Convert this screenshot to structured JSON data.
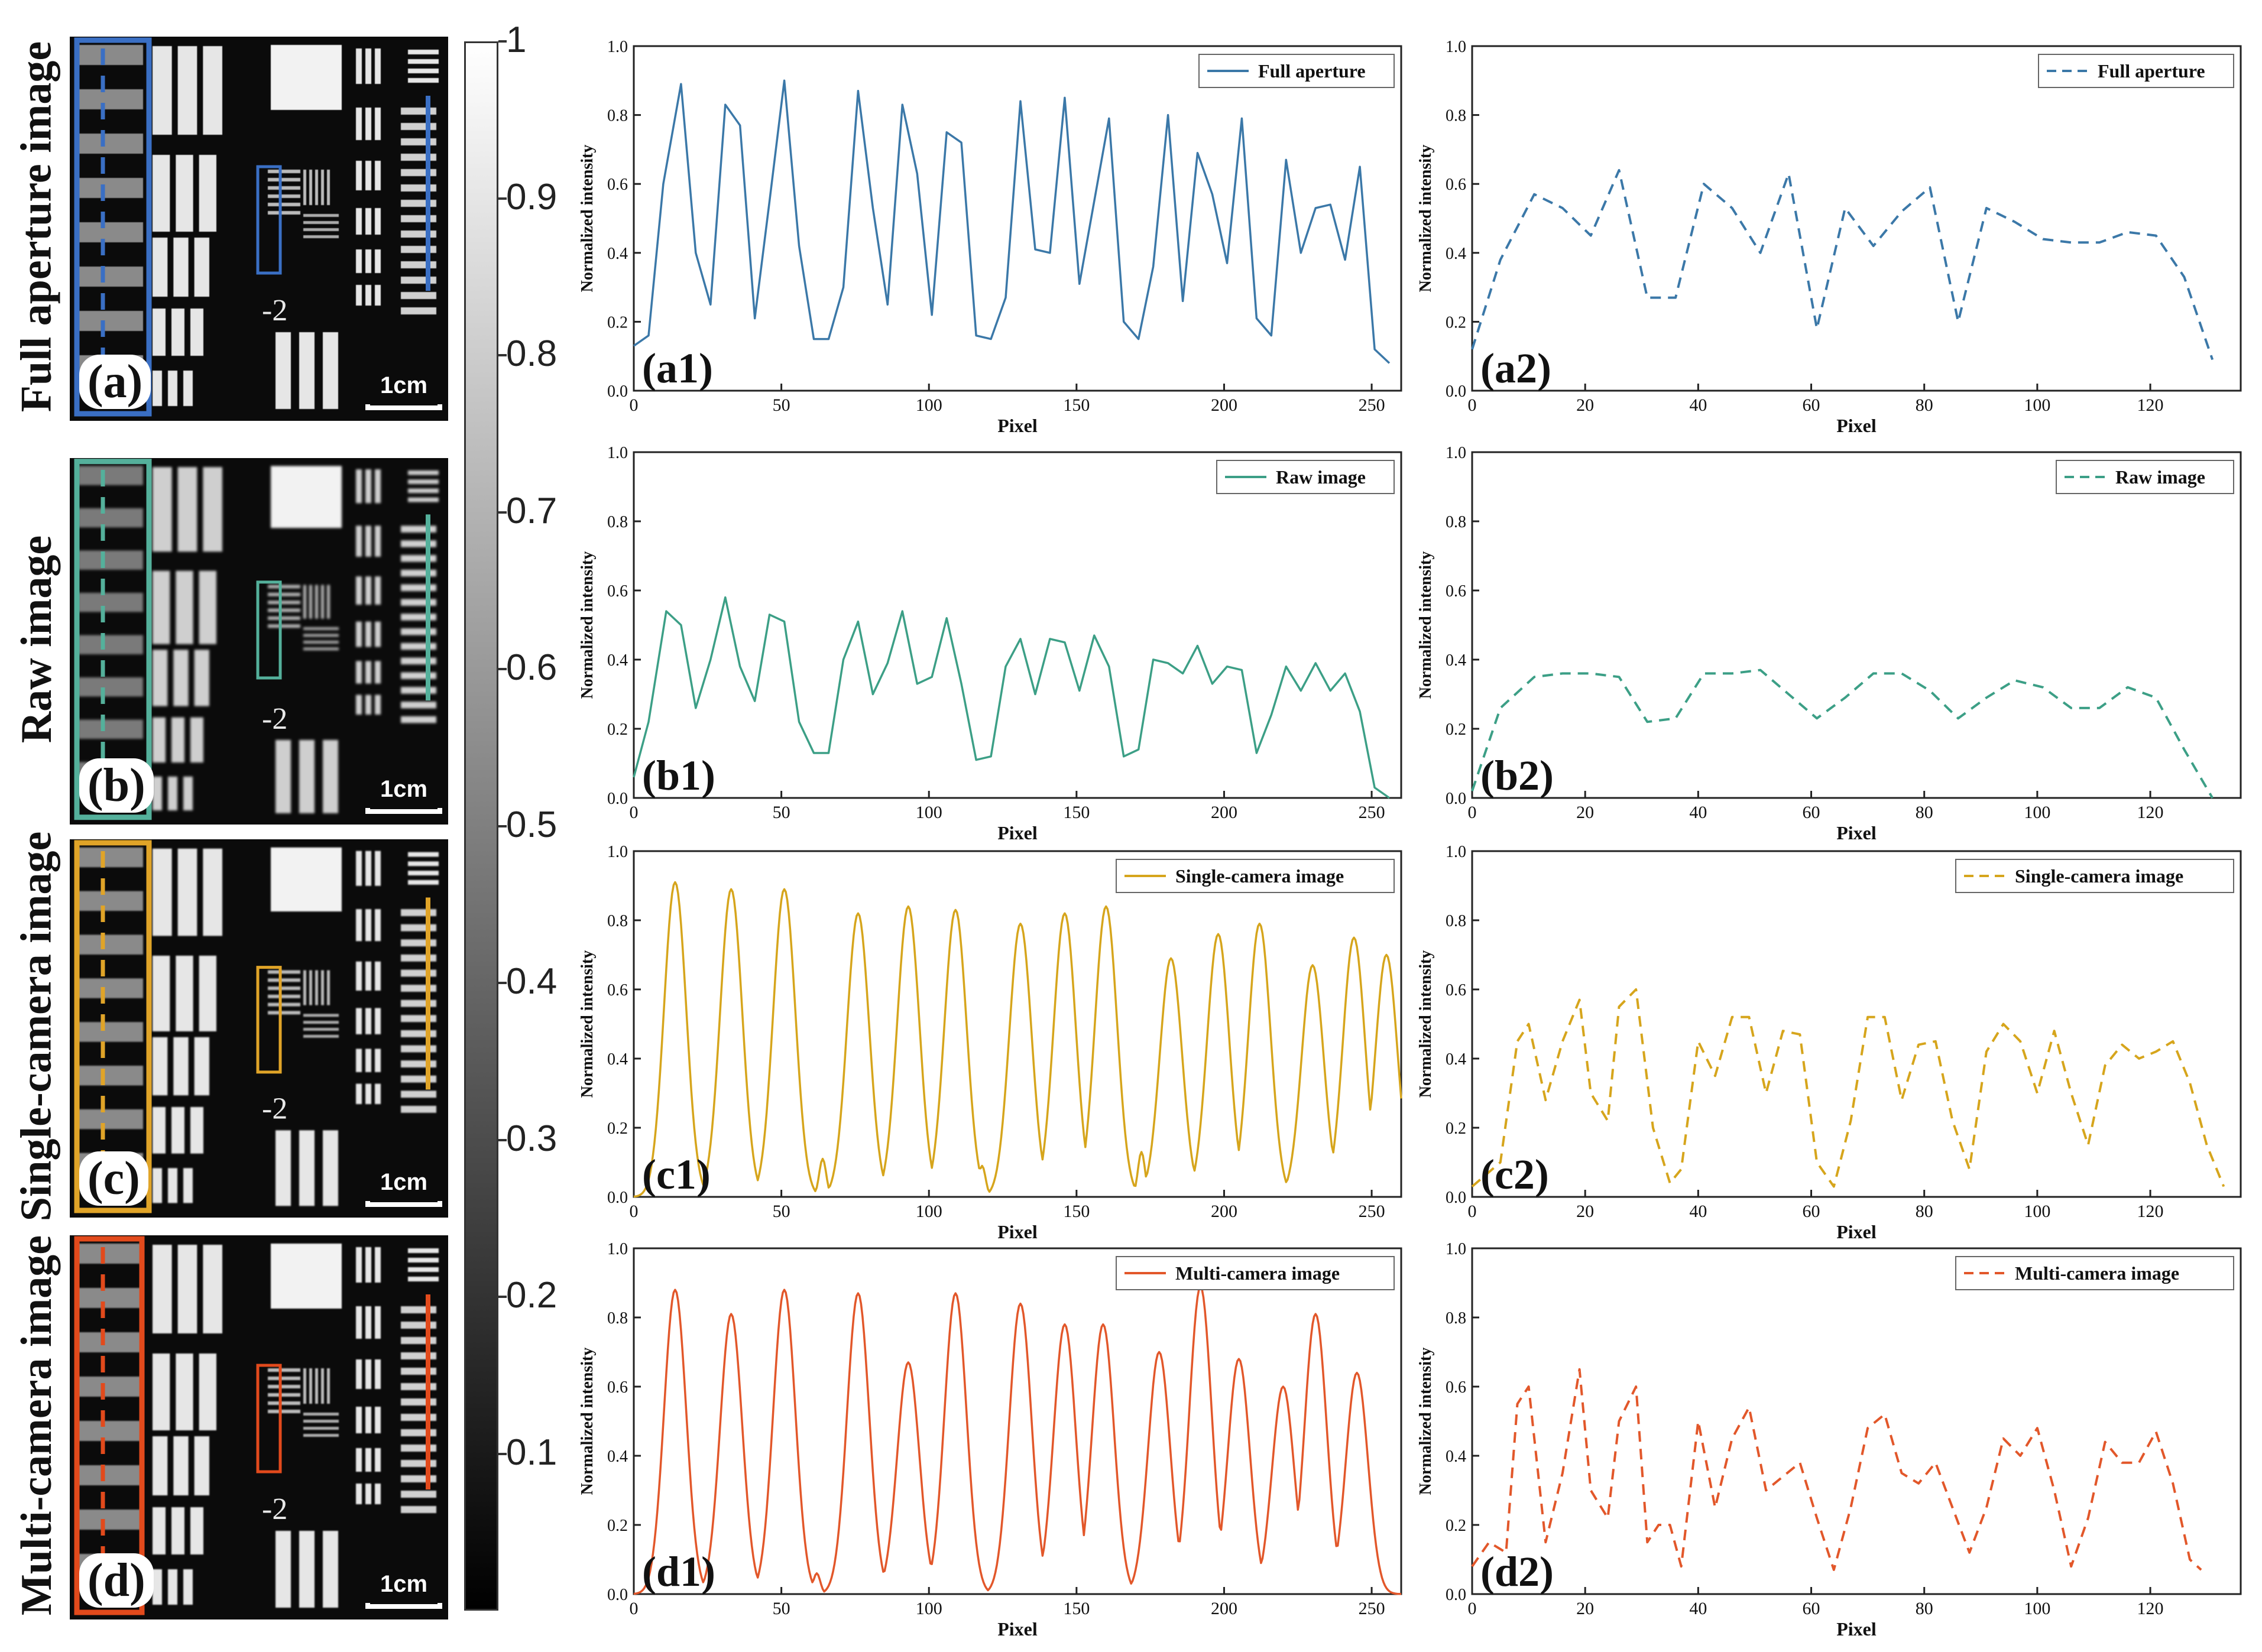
{
  "colorbar": {
    "ticks": [
      "1",
      "0.9",
      "0.8",
      "0.7",
      "0.6",
      "0.5",
      "0.4",
      "0.3",
      "0.2",
      "0.1"
    ]
  },
  "rows": [
    {
      "label": "Full aperture image",
      "letter": "(a)",
      "scale_label": "1cm",
      "color": "#3a6fc4",
      "group": "-2"
    },
    {
      "label": "Raw image",
      "letter": "(b)",
      "scale_label": "1cm",
      "color": "#54b09b",
      "group": "-2"
    },
    {
      "label": "Single-camera image",
      "letter": "(c)",
      "scale_label": "1cm",
      "color": "#e0a428",
      "group": "-2"
    },
    {
      "label": "Multi-camera image",
      "letter": "(d)",
      "scale_label": "1cm",
      "color": "#e24a1c",
      "group": "-2"
    }
  ],
  "chart_data": [
    {
      "id": "a1",
      "type": "line",
      "panel_label": "(a1)",
      "xlabel": "Pixel",
      "ylabel": "Normalized intensity",
      "xlim": [
        0,
        260
      ],
      "ylim": [
        0,
        1.0
      ],
      "xticks": [
        0,
        50,
        100,
        150,
        200,
        250
      ],
      "yticks": [
        0.0,
        0.2,
        0.4,
        0.6,
        0.8,
        1.0
      ],
      "legend_position": "top-right",
      "color": "#3b78a8",
      "dash": false,
      "series": [
        {
          "name": "Full aperture",
          "x": [
            0,
            5,
            10,
            16,
            21,
            26,
            31,
            36,
            41,
            46,
            51,
            56,
            61,
            66,
            71,
            76,
            81,
            86,
            91,
            96,
            101,
            106,
            111,
            116,
            121,
            126,
            131,
            136,
            141,
            146,
            151,
            156,
            161,
            166,
            171,
            176,
            181,
            186,
            191,
            196,
            201,
            206,
            211,
            216,
            221,
            226,
            231,
            236,
            241,
            246,
            251,
            256
          ],
          "y": [
            0.13,
            0.16,
            0.6,
            0.89,
            0.4,
            0.25,
            0.83,
            0.77,
            0.21,
            0.55,
            0.9,
            0.42,
            0.15,
            0.15,
            0.3,
            0.87,
            0.53,
            0.25,
            0.83,
            0.63,
            0.22,
            0.75,
            0.72,
            0.16,
            0.15,
            0.27,
            0.84,
            0.41,
            0.4,
            0.85,
            0.31,
            0.55,
            0.79,
            0.2,
            0.15,
            0.36,
            0.8,
            0.26,
            0.69,
            0.57,
            0.37,
            0.79,
            0.21,
            0.16,
            0.67,
            0.4,
            0.53,
            0.54,
            0.38,
            0.65,
            0.12,
            0.08
          ]
        }
      ]
    },
    {
      "id": "a2",
      "type": "line",
      "panel_label": "(a2)",
      "xlabel": "Pixel",
      "ylabel": "Normalized intensity",
      "xlim": [
        0,
        136
      ],
      "ylim": [
        0,
        1.0
      ],
      "xticks": [
        0,
        20,
        40,
        60,
        80,
        100,
        120
      ],
      "yticks": [
        0.0,
        0.2,
        0.4,
        0.6,
        0.8,
        1.0
      ],
      "legend_position": "top-right",
      "color": "#3b78a8",
      "dash": true,
      "series": [
        {
          "name": "Full aperture",
          "x": [
            0,
            5,
            11,
            16,
            21,
            26,
            31,
            36,
            41,
            46,
            51,
            56,
            61,
            66,
            71,
            76,
            81,
            86,
            91,
            96,
            101,
            106,
            111,
            116,
            121,
            126,
            131
          ],
          "y": [
            0.12,
            0.38,
            0.57,
            0.53,
            0.45,
            0.64,
            0.27,
            0.27,
            0.6,
            0.53,
            0.4,
            0.63,
            0.18,
            0.53,
            0.42,
            0.52,
            0.59,
            0.2,
            0.53,
            0.49,
            0.44,
            0.43,
            0.43,
            0.46,
            0.45,
            0.33,
            0.09
          ]
        }
      ]
    },
    {
      "id": "b1",
      "type": "line",
      "panel_label": "(b1)",
      "xlabel": "Pixel",
      "ylabel": "Normalized intensity",
      "xlim": [
        0,
        260
      ],
      "ylim": [
        0,
        1.0
      ],
      "xticks": [
        0,
        50,
        100,
        150,
        200,
        250
      ],
      "yticks": [
        0.0,
        0.2,
        0.4,
        0.6,
        0.8,
        1.0
      ],
      "legend_position": "top-right",
      "color": "#3c9f86",
      "dash": false,
      "series": [
        {
          "name": "Raw image",
          "x": [
            0,
            5,
            11,
            16,
            21,
            26,
            31,
            36,
            41,
            46,
            51,
            56,
            61,
            66,
            71,
            76,
            81,
            86,
            91,
            96,
            101,
            106,
            111,
            116,
            121,
            126,
            131,
            136,
            141,
            146,
            151,
            156,
            161,
            166,
            171,
            176,
            181,
            186,
            191,
            196,
            201,
            206,
            211,
            216,
            221,
            226,
            231,
            236,
            241,
            246,
            251,
            256
          ],
          "y": [
            0.06,
            0.22,
            0.54,
            0.5,
            0.26,
            0.4,
            0.58,
            0.38,
            0.28,
            0.53,
            0.51,
            0.22,
            0.13,
            0.13,
            0.4,
            0.51,
            0.3,
            0.39,
            0.54,
            0.33,
            0.35,
            0.52,
            0.33,
            0.11,
            0.12,
            0.38,
            0.46,
            0.3,
            0.46,
            0.45,
            0.31,
            0.47,
            0.38,
            0.12,
            0.14,
            0.4,
            0.39,
            0.36,
            0.44,
            0.33,
            0.38,
            0.37,
            0.13,
            0.24,
            0.38,
            0.31,
            0.39,
            0.31,
            0.36,
            0.25,
            0.03,
            0.0
          ]
        }
      ]
    },
    {
      "id": "b2",
      "type": "line",
      "panel_label": "(b2)",
      "xlabel": "Pixel",
      "ylabel": "Normalized intensity",
      "xlim": [
        0,
        136
      ],
      "ylim": [
        0,
        1.0
      ],
      "xticks": [
        0,
        20,
        40,
        60,
        80,
        100,
        120
      ],
      "yticks": [
        0.0,
        0.2,
        0.4,
        0.6,
        0.8,
        1.0
      ],
      "legend_position": "top-right",
      "color": "#3c9f86",
      "dash": true,
      "series": [
        {
          "name": "Raw image",
          "x": [
            0,
            5,
            11,
            16,
            21,
            26,
            31,
            36,
            41,
            46,
            51,
            56,
            61,
            66,
            71,
            76,
            81,
            86,
            91,
            96,
            101,
            106,
            111,
            116,
            121,
            126,
            131
          ],
          "y": [
            0.02,
            0.26,
            0.35,
            0.36,
            0.36,
            0.35,
            0.22,
            0.23,
            0.36,
            0.36,
            0.37,
            0.3,
            0.23,
            0.29,
            0.36,
            0.36,
            0.31,
            0.23,
            0.29,
            0.34,
            0.32,
            0.26,
            0.26,
            0.32,
            0.29,
            0.14,
            0.0
          ]
        }
      ]
    },
    {
      "id": "c1",
      "type": "line",
      "panel_label": "(c1)",
      "xlabel": "Pixel",
      "ylabel": "Normalized intensity",
      "xlim": [
        0,
        260
      ],
      "ylim": [
        0,
        1.0
      ],
      "xticks": [
        0,
        50,
        100,
        150,
        200,
        250
      ],
      "yticks": [
        0.0,
        0.2,
        0.4,
        0.6,
        0.8,
        1.0
      ],
      "legend_position": "top-right",
      "color": "#d6a51c",
      "dash": false,
      "series": [
        {
          "name": "Single-camera image",
          "peaks": [
            [
              14,
              0.91
            ],
            [
              33,
              0.89
            ],
            [
              51,
              0.89
            ],
            [
              76,
              0.82
            ],
            [
              93,
              0.84
            ],
            [
              109,
              0.83
            ],
            [
              131,
              0.79
            ],
            [
              146,
              0.82
            ],
            [
              160,
              0.84
            ],
            [
              182,
              0.69
            ],
            [
              198,
              0.76
            ],
            [
              212,
              0.79
            ],
            [
              230,
              0.67
            ],
            [
              244,
              0.75
            ],
            [
              255,
              0.7
            ]
          ],
          "minor_peaks": [
            [
              64,
              0.11
            ],
            [
              118,
              0.09
            ],
            [
              172,
              0.13
            ],
            [
              258,
              0.05
            ]
          ]
        }
      ]
    },
    {
      "id": "c2",
      "type": "line",
      "panel_label": "(c2)",
      "xlabel": "Pixel",
      "ylabel": "Normalized intensity",
      "xlim": [
        0,
        136
      ],
      "ylim": [
        0,
        1.0
      ],
      "xticks": [
        0,
        20,
        40,
        60,
        80,
        100,
        120
      ],
      "yticks": [
        0.0,
        0.2,
        0.4,
        0.6,
        0.8,
        1.0
      ],
      "legend_position": "top-right",
      "color": "#d6a51c",
      "dash": true,
      "series": [
        {
          "name": "Single-camera image",
          "x": [
            0,
            5,
            8,
            10,
            13,
            16,
            19,
            21,
            24,
            26,
            29,
            32,
            35,
            37,
            40,
            43,
            46,
            49,
            52,
            55,
            58,
            61,
            64,
            67,
            70,
            73,
            76,
            79,
            82,
            85,
            88,
            91,
            94,
            97,
            100,
            103,
            106,
            109,
            112,
            115,
            118,
            121,
            124,
            127,
            130,
            133
          ],
          "y": [
            0.03,
            0.1,
            0.45,
            0.5,
            0.28,
            0.45,
            0.57,
            0.3,
            0.22,
            0.55,
            0.6,
            0.2,
            0.04,
            0.08,
            0.45,
            0.35,
            0.52,
            0.52,
            0.3,
            0.48,
            0.47,
            0.1,
            0.03,
            0.22,
            0.52,
            0.52,
            0.28,
            0.44,
            0.45,
            0.22,
            0.08,
            0.42,
            0.5,
            0.45,
            0.3,
            0.48,
            0.3,
            0.15,
            0.38,
            0.44,
            0.4,
            0.42,
            0.45,
            0.33,
            0.15,
            0.03
          ]
        }
      ]
    },
    {
      "id": "d1",
      "type": "line",
      "panel_label": "(d1)",
      "xlabel": "Pixel",
      "ylabel": "Normalized intensity",
      "xlim": [
        0,
        260
      ],
      "ylim": [
        0,
        1.0
      ],
      "xticks": [
        0,
        50,
        100,
        150,
        200,
        250
      ],
      "yticks": [
        0.0,
        0.2,
        0.4,
        0.6,
        0.8,
        1.0
      ],
      "legend_position": "top-right",
      "color": "#e2572a",
      "dash": false,
      "series": [
        {
          "name": "Multi-camera image",
          "peaks": [
            [
              14,
              0.88
            ],
            [
              33,
              0.81
            ],
            [
              51,
              0.88
            ],
            [
              76,
              0.87
            ],
            [
              93,
              0.67
            ],
            [
              109,
              0.87
            ],
            [
              131,
              0.84
            ],
            [
              146,
              0.78
            ],
            [
              159,
              0.78
            ],
            [
              178,
              0.7
            ],
            [
              192,
              0.89
            ],
            [
              205,
              0.68
            ],
            [
              220,
              0.6
            ],
            [
              231,
              0.81
            ],
            [
              245,
              0.64
            ]
          ],
          "minor_peaks": [
            [
              27,
              0.05
            ],
            [
              62,
              0.06
            ],
            [
              138,
              0.1
            ],
            [
              152,
              0.12
            ],
            [
              167,
              0.05
            ],
            [
              186,
              0.11
            ],
            [
              197,
              0.09
            ],
            [
              227,
              0.09
            ]
          ]
        }
      ]
    },
    {
      "id": "d2",
      "type": "line",
      "panel_label": "(d2)",
      "xlabel": "Pixel",
      "ylabel": "Normalized intensity",
      "xlim": [
        0,
        136
      ],
      "ylim": [
        0,
        1.0
      ],
      "xticks": [
        0,
        20,
        40,
        60,
        80,
        100,
        120
      ],
      "yticks": [
        0.0,
        0.2,
        0.4,
        0.6,
        0.8,
        1.0
      ],
      "legend_position": "top-right",
      "color": "#e2572a",
      "dash": true,
      "series": [
        {
          "name": "Multi-camera image",
          "x": [
            0,
            3,
            6,
            8,
            10,
            13,
            16,
            19,
            21,
            24,
            26,
            29,
            31,
            33,
            35,
            37,
            40,
            43,
            46,
            49,
            52,
            55,
            58,
            61,
            64,
            67,
            70,
            73,
            76,
            79,
            82,
            85,
            88,
            91,
            94,
            97,
            100,
            103,
            106,
            109,
            112,
            115,
            118,
            121,
            124,
            127,
            129
          ],
          "y": [
            0.08,
            0.15,
            0.12,
            0.55,
            0.6,
            0.15,
            0.35,
            0.65,
            0.3,
            0.22,
            0.5,
            0.6,
            0.15,
            0.2,
            0.2,
            0.08,
            0.5,
            0.25,
            0.45,
            0.54,
            0.3,
            0.34,
            0.38,
            0.22,
            0.07,
            0.25,
            0.48,
            0.52,
            0.35,
            0.32,
            0.38,
            0.25,
            0.12,
            0.25,
            0.45,
            0.4,
            0.48,
            0.3,
            0.08,
            0.22,
            0.44,
            0.38,
            0.38,
            0.47,
            0.32,
            0.1,
            0.07
          ]
        }
      ]
    }
  ]
}
